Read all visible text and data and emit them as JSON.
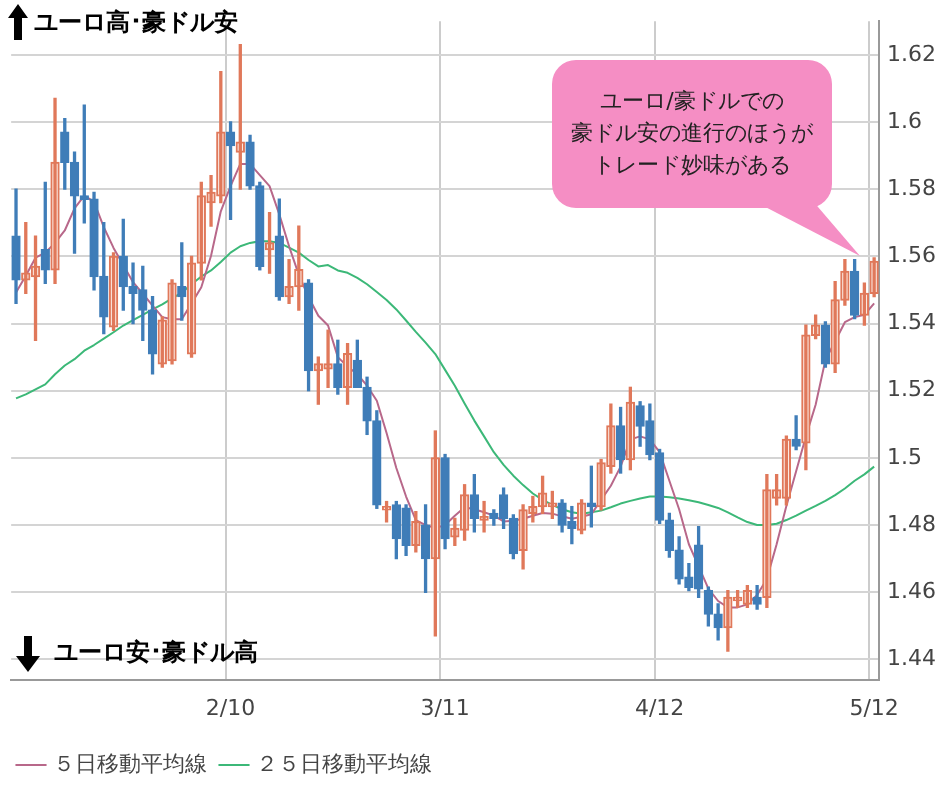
{
  "chart_data": {
    "type": "candlestick",
    "categories": [
      null,
      null,
      null,
      null,
      null,
      null,
      null,
      null,
      null,
      null,
      null,
      null,
      null,
      null,
      null,
      null,
      null,
      null,
      null,
      null,
      null,
      null,
      "2/10",
      null,
      null,
      null,
      null,
      null,
      null,
      null,
      null,
      null,
      null,
      null,
      null,
      null,
      null,
      null,
      null,
      null,
      null,
      null,
      null,
      null,
      "3/11",
      null,
      null,
      null,
      null,
      null,
      null,
      null,
      null,
      null,
      null,
      null,
      null,
      null,
      null,
      null,
      null,
      null,
      null,
      null,
      null,
      null,
      "4/12",
      null,
      null,
      null,
      null,
      null,
      null,
      null,
      null,
      null,
      null,
      null,
      null,
      null,
      null,
      null,
      null,
      null,
      null,
      null,
      null,
      null,
      "5/12"
    ],
    "ohlc": [
      [
        1.566,
        1.58,
        1.546,
        1.553
      ],
      [
        1.553,
        1.57,
        1.549,
        1.555
      ],
      [
        1.554,
        1.566,
        1.535,
        1.557
      ],
      [
        1.562,
        1.582,
        1.552,
        1.556
      ],
      [
        1.556,
        1.607,
        1.552,
        1.588
      ],
      [
        1.597,
        1.601,
        1.58,
        1.588
      ],
      [
        1.588,
        1.591,
        1.561,
        1.578
      ],
      [
        1.578,
        1.605,
        1.57,
        1.577
      ],
      [
        1.577,
        1.579,
        1.55,
        1.554
      ],
      [
        1.554,
        1.57,
        1.537,
        1.542
      ],
      [
        1.539,
        1.561,
        1.538,
        1.56
      ],
      [
        1.56,
        1.571,
        1.544,
        1.551
      ],
      [
        1.551,
        1.558,
        1.54,
        1.549
      ],
      [
        1.55,
        1.557,
        1.535,
        1.544
      ],
      [
        1.544,
        1.548,
        1.525,
        1.531
      ],
      [
        1.528,
        1.542,
        1.527,
        1.541
      ],
      [
        1.529,
        1.553,
        1.528,
        1.552
      ],
      [
        1.551,
        1.564,
        1.541,
        1.548
      ],
      [
        1.531,
        1.56,
        1.53,
        1.558
      ],
      [
        1.558,
        1.582,
        1.553,
        1.578
      ],
      [
        1.576,
        1.584,
        1.569,
        1.579
      ],
      [
        1.578,
        1.615,
        1.576,
        1.597
      ],
      [
        1.597,
        1.6,
        1.571,
        1.593
      ],
      [
        1.591,
        1.623,
        1.58,
        1.594
      ],
      [
        1.594,
        1.596,
        1.58,
        1.581
      ],
      [
        1.581,
        1.582,
        1.556,
        1.557
      ],
      [
        1.562,
        1.573,
        1.555,
        1.564
      ],
      [
        1.566,
        1.577,
        1.547,
        1.548
      ],
      [
        1.548,
        1.559,
        1.546,
        1.551
      ],
      [
        1.551,
        1.569,
        1.544,
        1.556
      ],
      [
        1.552,
        1.553,
        1.52,
        1.526
      ],
      [
        1.526,
        1.53,
        1.516,
        1.528
      ],
      [
        1.5265,
        1.538,
        1.521,
        1.528
      ],
      [
        1.528,
        1.535,
        1.519,
        1.521
      ],
      [
        1.521,
        1.534,
        1.516,
        1.531
      ],
      [
        1.529,
        1.535,
        1.521,
        1.521
      ],
      [
        1.521,
        1.524,
        1.507,
        1.511
      ],
      [
        1.511,
        1.514,
        1.485,
        1.486
      ],
      [
        1.4845,
        1.487,
        1.481,
        1.4855
      ],
      [
        1.486,
        1.487,
        1.47,
        1.476
      ],
      [
        1.485,
        1.486,
        1.471,
        1.474
      ],
      [
        1.474,
        1.484,
        1.472,
        1.481
      ],
      [
        1.48,
        1.486,
        1.46,
        1.47
      ],
      [
        1.47,
        1.508,
        1.447,
        1.5
      ],
      [
        1.5,
        1.501,
        1.473,
        1.476
      ],
      [
        1.4765,
        1.482,
        1.474,
        1.479
      ],
      [
        1.4785,
        1.492,
        1.4755,
        1.489
      ],
      [
        1.489,
        1.495,
        1.478,
        1.482
      ],
      [
        1.4815,
        1.487,
        1.478,
        1.4825
      ],
      [
        1.4835,
        1.4845,
        1.48,
        1.482
      ],
      [
        1.489,
        1.491,
        1.479,
        1.482
      ],
      [
        1.482,
        1.483,
        1.47,
        1.4715
      ],
      [
        1.4725,
        1.486,
        1.467,
        1.4845
      ],
      [
        1.4835,
        1.4885,
        1.481,
        1.4855
      ],
      [
        1.4855,
        1.4945,
        1.4835,
        1.4895
      ],
      [
        1.4855,
        1.49,
        1.482,
        1.4865
      ],
      [
        1.4865,
        1.4875,
        1.478,
        1.48
      ],
      [
        1.481,
        1.4855,
        1.4745,
        1.479
      ],
      [
        1.4785,
        1.4875,
        1.4775,
        1.4865
      ],
      [
        1.4865,
        1.4975,
        1.4795,
        1.4855
      ],
      [
        1.4855,
        1.4995,
        1.4845,
        1.4985
      ],
      [
        1.4975,
        1.516,
        1.4955,
        1.5095
      ],
      [
        1.5095,
        1.515,
        1.4955,
        1.4995
      ],
      [
        1.4995,
        1.521,
        1.4965,
        1.5165
      ],
      [
        1.5155,
        1.5167,
        1.5035,
        1.5095
      ],
      [
        1.511,
        1.516,
        1.4995,
        1.501
      ],
      [
        1.5015,
        1.5025,
        1.4805,
        1.4815
      ],
      [
        1.4815,
        1.4835,
        1.4705,
        1.4725
      ],
      [
        1.4725,
        1.4765,
        1.4625,
        1.464
      ],
      [
        1.4645,
        1.4685,
        1.4605,
        1.4615
      ],
      [
        1.474,
        1.4795,
        1.4585,
        1.461
      ],
      [
        1.4605,
        1.4615,
        1.45,
        1.4535
      ],
      [
        1.4535,
        1.4565,
        1.4458,
        1.4495
      ],
      [
        1.4495,
        1.4605,
        1.4425,
        1.4585
      ],
      [
        1.4575,
        1.4605,
        1.4555,
        1.4585
      ],
      [
        1.4565,
        1.462,
        1.4555,
        1.4605
      ],
      [
        1.4585,
        1.462,
        1.455,
        1.4565
      ],
      [
        1.4585,
        1.495,
        1.4555,
        1.4905
      ],
      [
        1.488,
        1.495,
        1.486,
        1.4905
      ],
      [
        1.488,
        1.5065,
        1.486,
        1.5055
      ],
      [
        1.5055,
        1.5125,
        1.5025,
        1.5035
      ],
      [
        1.5045,
        1.5395,
        1.4965,
        1.5365
      ],
      [
        1.5365,
        1.5425,
        1.5355,
        1.5395
      ],
      [
        1.5395,
        1.5405,
        1.527,
        1.528
      ],
      [
        1.528,
        1.5525,
        1.5255,
        1.547
      ],
      [
        1.547,
        1.559,
        1.5455,
        1.5555
      ],
      [
        1.5555,
        1.559,
        1.5415,
        1.5425
      ],
      [
        1.5425,
        1.552,
        1.5395,
        1.549
      ],
      [
        1.549,
        1.5595,
        1.548,
        1.5585
      ]
    ],
    "colors": [
      "#3f7db8",
      "#e0785a",
      "#e0785a",
      "#3f7db8",
      "#e0785a",
      "#3f7db8",
      "#3f7db8",
      "#3f7db8",
      "#3f7db8",
      "#3f7db8",
      "#e0785a",
      "#3f7db8",
      "#3f7db8",
      "#3f7db8",
      "#3f7db8",
      "#e0785a",
      "#e0785a",
      "#3f7db8",
      "#e0785a",
      "#e0785a",
      "#e0785a",
      "#e0785a",
      "#3f7db8",
      "#e0785a",
      "#3f7db8",
      "#3f7db8",
      "#e0785a",
      "#3f7db8",
      "#e0785a",
      "#e0785a",
      "#3f7db8",
      "#e0785a",
      "#e0785a",
      "#3f7db8",
      "#e0785a",
      "#3f7db8",
      "#3f7db8",
      "#3f7db8",
      "#e0785a",
      "#3f7db8",
      "#3f7db8",
      "#e0785a",
      "#3f7db8",
      "#e0785a",
      "#3f7db8",
      "#e0785a",
      "#e0785a",
      "#3f7db8",
      "#e0785a",
      "#3f7db8",
      "#3f7db8",
      "#3f7db8",
      "#e0785a",
      "#e0785a",
      "#e0785a",
      "#e0785a",
      "#3f7db8",
      "#3f7db8",
      "#e0785a",
      "#3f7db8",
      "#e0785a",
      "#e0785a",
      "#3f7db8",
      "#e0785a",
      "#3f7db8",
      "#3f7db8",
      "#3f7db8",
      "#3f7db8",
      "#3f7db8",
      "#3f7db8",
      "#3f7db8",
      "#3f7db8",
      "#3f7db8",
      "#e0785a",
      "#e0785a",
      "#e0785a",
      "#3f7db8",
      "#e0785a",
      "#e0785a",
      "#e0785a",
      "#3f7db8",
      "#e0785a",
      "#e0785a",
      "#3f7db8",
      "#e0785a",
      "#e0785a",
      "#3f7db8",
      "#e0785a",
      "#e0785a"
    ],
    "series": [
      {
        "name": "５日移動平均線",
        "type": "line",
        "color": "#b8688a",
        "values": [
          1.5492,
          1.5542,
          1.5596,
          1.5611,
          1.564,
          1.5677,
          1.5743,
          1.5781,
          1.5762,
          1.5687,
          1.5625,
          1.5574,
          1.5523,
          1.5489,
          1.5453,
          1.5419,
          1.5413,
          1.5413,
          1.546,
          1.5508,
          1.5602,
          1.5734,
          1.5809,
          1.5875,
          1.5875,
          1.5842,
          1.5809,
          1.5725,
          1.563,
          1.5545,
          1.5479,
          1.5423,
          1.5394,
          1.53,
          1.5272,
          1.5249,
          1.5215,
          1.517,
          1.5074,
          1.497,
          1.4885,
          1.4815,
          1.48,
          1.4791,
          1.48,
          1.4828,
          1.4853,
          1.4847,
          1.4838,
          1.4828,
          1.4811,
          1.4813,
          1.4819,
          1.4828,
          1.4836,
          1.4834,
          1.4826,
          1.4819,
          1.4825,
          1.4832,
          1.4875,
          1.4917,
          1.4974,
          1.5055,
          1.5064,
          1.5055,
          1.5017,
          1.4932,
          1.4847,
          1.4743,
          1.4677,
          1.4611,
          1.4574,
          1.4555,
          1.4555,
          1.4564,
          1.4592,
          1.464,
          1.4743,
          1.4857,
          1.496,
          1.5064,
          1.5158,
          1.5291,
          1.5347,
          1.5404,
          1.5419,
          1.5426,
          1.546
        ]
      },
      {
        "name": "２５日移動平均線",
        "type": "line",
        "color": "#3cb878",
        "values": [
          1.5177,
          1.5189,
          1.5204,
          1.5219,
          1.5249,
          1.5275,
          1.5294,
          1.5319,
          1.5336,
          1.5355,
          1.5374,
          1.5394,
          1.541,
          1.5426,
          1.5442,
          1.5457,
          1.5475,
          1.5492,
          1.5517,
          1.554,
          1.5558,
          1.5583,
          1.5611,
          1.563,
          1.564,
          1.5645,
          1.5645,
          1.564,
          1.5626,
          1.5611,
          1.5589,
          1.557,
          1.5574,
          1.5558,
          1.5551,
          1.5536,
          1.5517,
          1.5494,
          1.547,
          1.5442,
          1.5409,
          1.5375,
          1.5343,
          1.5309,
          1.5262,
          1.5215,
          1.5162,
          1.5111,
          1.5064,
          1.5017,
          1.4979,
          1.4947,
          1.4919,
          1.4894,
          1.4875,
          1.486,
          1.4847,
          1.4838,
          1.4834,
          1.4838,
          1.4843,
          1.4853,
          1.4864,
          1.4872,
          1.4879,
          1.4885,
          1.4885,
          1.4883,
          1.4879,
          1.4874,
          1.4868,
          1.486,
          1.4851,
          1.4838,
          1.4823,
          1.4809,
          1.48,
          1.48,
          1.4804,
          1.4815,
          1.4828,
          1.4843,
          1.4857,
          1.4872,
          1.4889,
          1.4909,
          1.4932,
          1.4951,
          1.4974
        ]
      }
    ],
    "ylim": [
      1.434,
      1.63
    ],
    "yticks": [
      1.44,
      1.46,
      1.48,
      1.5,
      1.52,
      1.54,
      1.56,
      1.58,
      1.6,
      1.62
    ],
    "grid": true,
    "legend": "bottom left",
    "marker": "none",
    "line_style": "solid",
    "annotations": [
      "ユーロ高･豪ドル安",
      "ユーロ安･豪ドル高",
      "ユーロ/豪ドルでの",
      "豪ドル安の進行のほうが",
      "トレード妙味がある"
    ]
  }
}
